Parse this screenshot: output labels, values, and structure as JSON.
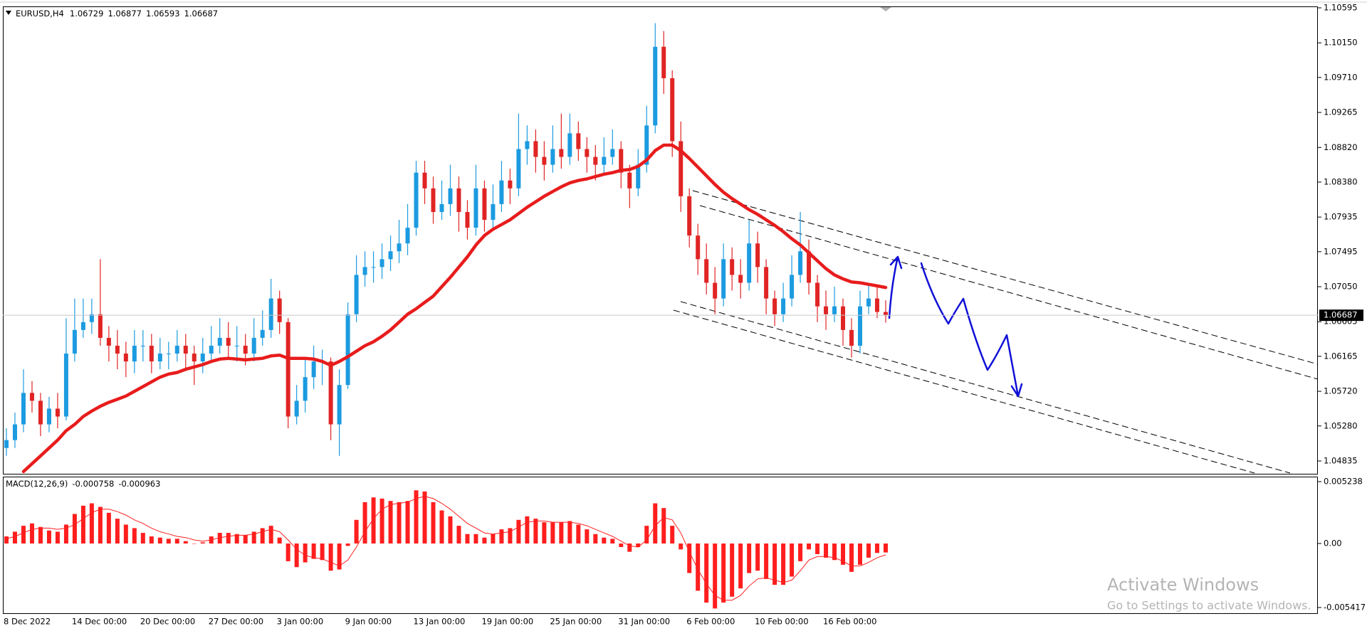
{
  "chart_data": [
    {
      "type": "candlestick",
      "title": "EURUSD,H4",
      "categories": [
        "8 Dec 2022",
        null,
        null,
        null,
        null,
        null,
        null,
        null,
        "14 Dec 00:00",
        null,
        null,
        null,
        null,
        null,
        null,
        null,
        "20 Dec 00:00",
        null,
        null,
        null,
        null,
        null,
        null,
        null,
        "27 Dec 00:00",
        null,
        null,
        null,
        null,
        null,
        null,
        null,
        "3 Jan 00:00",
        null,
        null,
        null,
        null,
        null,
        null,
        null,
        "9 Jan 00:00",
        null,
        null,
        null,
        null,
        null,
        null,
        null,
        "13 Jan 00:00",
        null,
        null,
        null,
        null,
        null,
        null,
        null,
        "19 Jan 00:00",
        null,
        null,
        null,
        null,
        null,
        null,
        null,
        "25 Jan 00:00",
        null,
        null,
        null,
        null,
        null,
        null,
        null,
        "31 Jan 00:00",
        null,
        null,
        null,
        null,
        null,
        null,
        null,
        "6 Feb 00:00",
        null,
        null,
        null,
        null,
        null,
        null,
        null,
        "10 Feb 00:00",
        null,
        null,
        null,
        null,
        null,
        null,
        null,
        "16 Feb 00:00",
        null,
        null,
        null,
        null,
        null,
        null,
        null
      ],
      "open": [
        1.05,
        1.051,
        1.053,
        1.057,
        1.056,
        1.053,
        1.055,
        1.054,
        1.062,
        1.065,
        1.066,
        1.067,
        1.064,
        1.063,
        1.062,
        1.061,
        1.063,
        1.063,
        1.061,
        1.062,
        1.062,
        1.063,
        1.062,
        1.061,
        1.062,
        1.063,
        1.064,
        1.063,
        1.063,
        1.062,
        1.064,
        1.065,
        1.069,
        1.066,
        1.054,
        1.056,
        1.059,
        1.061,
        1.061,
        1.053,
        1.058,
        1.067,
        1.072,
        1.073,
        1.073,
        1.074,
        1.075,
        1.076,
        1.078,
        1.085,
        1.083,
        1.08,
        1.081,
        1.083,
        1.08,
        1.078,
        1.083,
        1.079,
        1.081,
        1.084,
        1.083,
        1.088,
        1.089,
        1.087,
        1.086,
        1.088,
        1.087,
        1.09,
        1.088,
        1.087,
        1.086,
        1.087,
        1.088,
        1.085,
        1.083,
        1.086,
        1.091,
        1.101,
        1.097,
        1.089,
        1.082,
        1.077,
        1.074,
        1.071,
        1.069,
        1.074,
        1.072,
        1.071,
        1.076,
        1.073,
        1.069,
        1.067,
        1.069,
        1.072,
        1.075,
        1.071,
        1.068,
        1.067,
        1.068,
        1.065,
        1.063,
        1.068,
        1.069,
        1.06729
      ],
      "high": [
        1.0525,
        1.0545,
        1.06,
        1.0585,
        1.057,
        1.0565,
        1.057,
        1.0665,
        1.069,
        1.069,
        1.069,
        1.074,
        1.0655,
        1.065,
        1.0635,
        1.065,
        1.065,
        1.0645,
        1.064,
        1.0635,
        1.065,
        1.0645,
        1.063,
        1.064,
        1.0655,
        1.0665,
        1.066,
        1.0655,
        1.0645,
        1.0665,
        1.0675,
        1.0715,
        1.07,
        1.0665,
        1.058,
        1.0615,
        1.063,
        1.0625,
        1.0615,
        1.06,
        1.0685,
        1.0745,
        1.075,
        1.075,
        1.076,
        1.077,
        1.079,
        1.081,
        1.0865,
        1.0865,
        1.0845,
        1.084,
        1.086,
        1.0845,
        1.0815,
        1.086,
        1.084,
        1.0835,
        1.0865,
        1.0855,
        1.0925,
        1.091,
        1.0905,
        1.089,
        1.091,
        1.0925,
        1.0925,
        1.0915,
        1.0895,
        1.0885,
        1.0895,
        1.0905,
        1.089,
        1.086,
        1.088,
        1.0935,
        1.104,
        1.103,
        1.098,
        1.0915,
        1.083,
        1.0785,
        1.076,
        1.073,
        1.076,
        1.0755,
        1.074,
        1.079,
        1.0775,
        1.074,
        1.07,
        1.071,
        1.0745,
        1.08,
        1.0765,
        1.072,
        1.07,
        1.0705,
        1.069,
        1.0665,
        1.07,
        1.071,
        1.0705,
        1.06877
      ],
      "low": [
        1.049,
        1.05,
        1.052,
        1.0545,
        1.0515,
        1.052,
        1.0525,
        1.0535,
        1.061,
        1.064,
        1.0645,
        1.063,
        1.061,
        1.06,
        1.059,
        1.0595,
        1.061,
        1.0595,
        1.06,
        1.06,
        1.061,
        1.06,
        1.058,
        1.0595,
        1.061,
        1.062,
        1.0615,
        1.061,
        1.0605,
        1.061,
        1.063,
        1.064,
        1.0645,
        1.0525,
        1.053,
        1.0545,
        1.0575,
        1.058,
        1.051,
        1.049,
        1.0575,
        1.066,
        1.0705,
        1.071,
        1.0715,
        1.0725,
        1.0735,
        1.0745,
        1.077,
        1.081,
        1.0785,
        1.079,
        1.0795,
        1.0775,
        1.0765,
        1.077,
        1.0775,
        1.078,
        1.08,
        1.081,
        1.082,
        1.086,
        1.085,
        1.084,
        1.085,
        1.0855,
        1.086,
        1.0865,
        1.085,
        1.084,
        1.085,
        1.086,
        1.083,
        1.0805,
        1.082,
        1.085,
        1.09,
        1.095,
        1.087,
        1.08,
        1.0755,
        1.072,
        1.0695,
        1.067,
        1.068,
        1.07,
        1.069,
        1.07,
        1.071,
        1.067,
        1.0655,
        1.066,
        1.068,
        1.071,
        1.0695,
        1.066,
        1.065,
        1.066,
        1.063,
        1.0615,
        1.062,
        1.067,
        1.0665,
        1.06593
      ],
      "close": [
        1.051,
        1.053,
        1.057,
        1.056,
        1.053,
        1.055,
        1.054,
        1.062,
        1.065,
        1.066,
        1.067,
        1.064,
        1.063,
        1.062,
        1.061,
        1.063,
        1.063,
        1.061,
        1.062,
        1.062,
        1.063,
        1.062,
        1.061,
        1.062,
        1.063,
        1.064,
        1.063,
        1.063,
        1.062,
        1.064,
        1.065,
        1.069,
        1.066,
        1.054,
        1.056,
        1.059,
        1.061,
        1.061,
        1.053,
        1.058,
        1.067,
        1.072,
        1.073,
        1.073,
        1.074,
        1.075,
        1.076,
        1.078,
        1.085,
        1.083,
        1.08,
        1.081,
        1.083,
        1.08,
        1.078,
        1.083,
        1.079,
        1.081,
        1.084,
        1.083,
        1.088,
        1.089,
        1.087,
        1.086,
        1.088,
        1.087,
        1.09,
        1.088,
        1.087,
        1.086,
        1.087,
        1.088,
        1.085,
        1.083,
        1.086,
        1.091,
        1.101,
        1.097,
        1.089,
        1.082,
        1.077,
        1.074,
        1.071,
        1.069,
        1.074,
        1.072,
        1.071,
        1.076,
        1.073,
        1.069,
        1.067,
        1.069,
        1.072,
        1.075,
        1.071,
        1.068,
        1.067,
        1.068,
        1.065,
        1.063,
        1.068,
        1.069,
        1.06729,
        1.06687
      ],
      "up_color": "#1c9be0",
      "down_color": "#e02424",
      "ma": {
        "color": "#e81c1c",
        "values": [
          null,
          null,
          1.047,
          1.048,
          1.049,
          1.05,
          1.051,
          1.0522,
          1.053,
          1.054,
          1.0547,
          1.0553,
          1.0558,
          1.0562,
          1.0566,
          1.0572,
          1.0578,
          1.0584,
          1.059,
          1.0594,
          1.0596,
          1.06,
          1.0603,
          1.0606,
          1.061,
          1.0613,
          1.0614,
          1.0613,
          1.0612,
          1.0613,
          1.0614,
          1.0617,
          1.0618,
          1.0614,
          1.0614,
          1.0614,
          1.0613,
          1.061,
          1.0605,
          1.061,
          1.0616,
          1.0623,
          1.063,
          1.0635,
          1.0642,
          1.065,
          1.066,
          1.067,
          1.0677,
          1.0685,
          1.0693,
          1.0705,
          1.0717,
          1.073,
          1.0743,
          1.0758,
          1.077,
          1.0778,
          1.0784,
          1.079,
          1.0798,
          1.0806,
          1.0813,
          1.082,
          1.0826,
          1.0832,
          1.0837,
          1.084,
          1.0842,
          1.0845,
          1.0848,
          1.085,
          1.0853,
          1.0854,
          1.0858,
          1.0866,
          1.0878,
          1.0885,
          1.0885,
          1.0878,
          1.0868,
          1.0857,
          1.0846,
          1.0835,
          1.0825,
          1.0817,
          1.081,
          1.0803,
          1.0797,
          1.079,
          1.0783,
          1.0775,
          1.0766,
          1.0758,
          1.0748,
          1.0738,
          1.0728,
          1.072,
          1.0715,
          1.0711,
          1.071,
          1.0708,
          1.0706,
          1.0704
        ]
      },
      "ylim": [
        1.04672,
        1.10604
      ],
      "yticks": [
        1.10595,
        {
          "value": 1.1015,
          "label": "1.10150"
        },
        {
          "value": 1.0971,
          "label": "1.09710"
        },
        1.09265,
        {
          "value": 1.0882,
          "label": "1.08820"
        },
        {
          "value": 1.0838,
          "label": "1.08380"
        },
        1.07935,
        1.07495,
        {
          "value": 1.0705,
          "label": "1.07050"
        },
        1.06605,
        1.06165,
        {
          "value": 1.0572,
          "label": "1.05720"
        },
        {
          "value": 1.0528,
          "label": "1.05280"
        },
        1.04835
      ]
    },
    {
      "type": "macd",
      "title": "MACD(12,26,9)",
      "histogram": {
        "color": "#ff1e1e",
        "values": [
          0.0006,
          0.001,
          0.0015,
          0.0017,
          0.0014,
          0.0011,
          0.001,
          0.0016,
          0.0025,
          0.0032,
          0.0034,
          0.0031,
          0.0026,
          0.0021,
          0.0016,
          0.0013,
          0.0009,
          0.0006,
          0.0005,
          0.0004,
          0.0004,
          0.0002,
          0,
          0.0001,
          0.0006,
          0.0009,
          0.0009,
          0.0008,
          0.0007,
          0.001,
          0.0013,
          0.0015,
          0.0005,
          -0.0015,
          -0.002,
          -0.0016,
          -0.0013,
          -0.0014,
          -0.0023,
          -0.0022,
          -0.0002,
          0.002,
          0.0035,
          0.0039,
          0.0038,
          0.0036,
          0.0035,
          0.0036,
          0.0045,
          0.0044,
          0.0035,
          0.0028,
          0.0023,
          0.0015,
          0.0008,
          0.0008,
          0.0005,
          0.0008,
          0.0012,
          0.0013,
          0.002,
          0.0023,
          0.0021,
          0.0018,
          0.0018,
          0.0018,
          0.0019,
          0.0016,
          0.0012,
          0.0008,
          0.0005,
          0.0004,
          -0.0003,
          -0.0007,
          -0.0003,
          0.0015,
          0.0034,
          0.003,
          0.0015,
          -0.0005,
          -0.0025,
          -0.004,
          -0.005,
          -0.0055,
          -0.005,
          -0.0045,
          -0.0038,
          -0.0025,
          -0.0023,
          -0.003,
          -0.0035,
          -0.0035,
          -0.0028,
          -0.0015,
          -0.0005,
          -0.0009,
          -0.0012,
          -0.0014,
          -0.0018,
          -0.0024,
          -0.0018,
          -0.0012,
          -0.0008,
          -0.000758
        ]
      },
      "signal": {
        "color": "#ff1e1e",
        "values": [
          0.0004,
          0.0006,
          0.0009,
          0.0012,
          0.0013,
          0.0013,
          0.0012,
          0.0013,
          0.0016,
          0.0021,
          0.0026,
          0.0029,
          0.0029,
          0.0027,
          0.0024,
          0.002,
          0.0017,
          0.0013,
          0.001,
          0.0008,
          0.0006,
          0.0005,
          0.0003,
          0.0002,
          0.0003,
          0.0005,
          0.0006,
          0.0007,
          0.0007,
          0.0008,
          0.001,
          0.0012,
          0.001,
          0.0003,
          -0.0005,
          -0.001,
          -0.0012,
          -0.0013,
          -0.0016,
          -0.0019,
          -0.0014,
          -0.0003,
          0.001,
          0.0021,
          0.0029,
          0.0033,
          0.0034,
          0.0035,
          0.0038,
          0.004,
          0.0038,
          0.0034,
          0.0029,
          0.0023,
          0.0017,
          0.0013,
          0.0009,
          0.0008,
          0.0009,
          0.001,
          0.0014,
          0.0018,
          0.0019,
          0.0019,
          0.0018,
          0.0018,
          0.0018,
          0.0017,
          0.0015,
          0.0012,
          0.0009,
          0.0006,
          0.0002,
          -0.0002,
          -0.0003,
          0.0003,
          0.0015,
          0.0022,
          0.002,
          0.0009,
          -0.0007,
          -0.0022,
          -0.0034,
          -0.0044,
          -0.0048,
          -0.0048,
          -0.0044,
          -0.0036,
          -0.003,
          -0.0029,
          -0.0031,
          -0.0033,
          -0.0031,
          -0.0023,
          -0.0014,
          -0.0011,
          -0.0011,
          -0.0012,
          -0.0015,
          -0.0019,
          -0.0019,
          -0.0016,
          -0.0012,
          -0.000963
        ]
      },
      "ylim": [
        -0.00584,
        0.00566
      ],
      "yticks": [
        0.005238,
        {
          "value": 0,
          "label": "0.00"
        },
        -0.005417
      ]
    }
  ],
  "watermark": {
    "title": "Activate Windows",
    "subtitle": "Go to Settings to activate Windows."
  }
}
